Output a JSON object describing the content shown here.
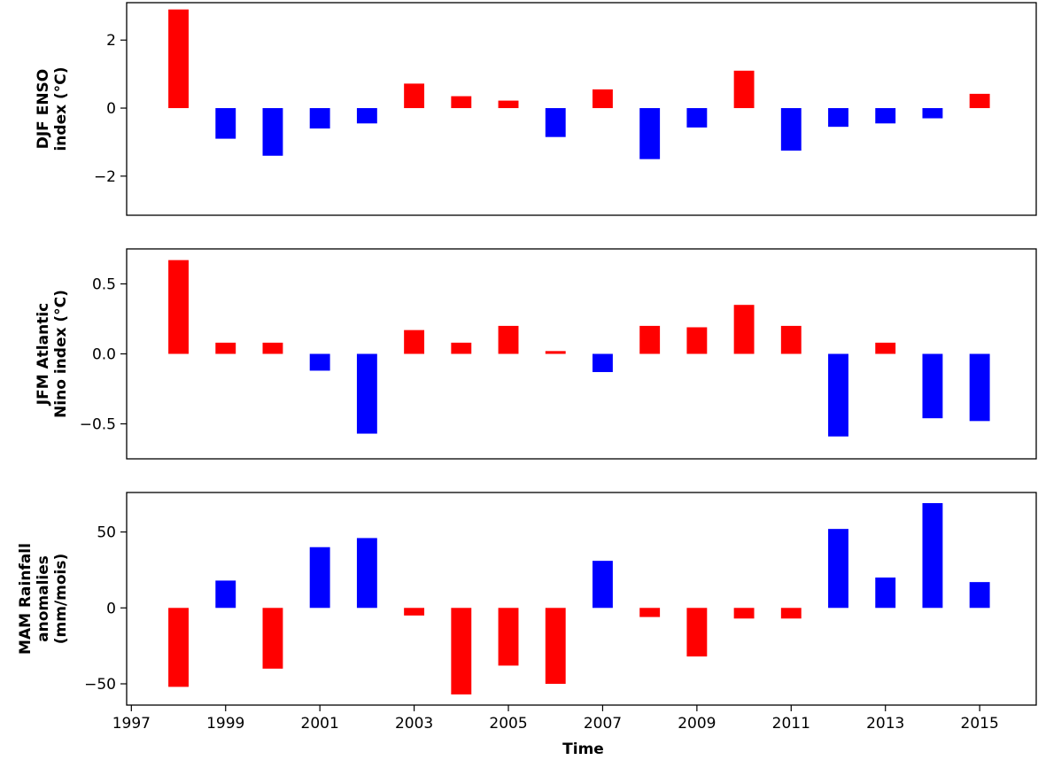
{
  "colors": {
    "positive": "#ff0000",
    "negative": "#0000ff",
    "axes": "#000000"
  },
  "chart_data": [
    {
      "type": "bar",
      "ylabel": [
        "DJF ENSO",
        "index (°C)"
      ],
      "x": [
        1998,
        1999,
        2000,
        2001,
        2002,
        2003,
        2004,
        2005,
        2006,
        2007,
        2008,
        2009,
        2010,
        2011,
        2012,
        2013,
        2014,
        2015
      ],
      "values": [
        2.9,
        -0.9,
        -1.4,
        -0.6,
        -0.45,
        0.72,
        0.35,
        0.22,
        -0.85,
        0.55,
        -1.5,
        -0.57,
        1.1,
        -1.25,
        -0.55,
        -0.45,
        -0.3,
        0.42
      ],
      "bar_colors": [
        "red",
        "blue",
        "blue",
        "blue",
        "blue",
        "red",
        "red",
        "red",
        "blue",
        "red",
        "blue",
        "blue",
        "red",
        "blue",
        "blue",
        "blue",
        "blue",
        "red"
      ],
      "ylim": [
        -3.15,
        3.1
      ],
      "yticks": [
        -2,
        0,
        2
      ],
      "ytick_labels": [
        "−2",
        "0",
        "2"
      ],
      "xlim": [
        1996.9,
        2016.2
      ],
      "grid": false
    },
    {
      "type": "bar",
      "ylabel": [
        "JFM Atlantic",
        "Nino index (°C)"
      ],
      "x": [
        1998,
        1999,
        2000,
        2001,
        2002,
        2003,
        2004,
        2005,
        2006,
        2007,
        2008,
        2009,
        2010,
        2011,
        2012,
        2013,
        2014,
        2015
      ],
      "values": [
        0.67,
        0.08,
        0.08,
        -0.12,
        -0.57,
        0.17,
        0.08,
        0.2,
        0.02,
        -0.13,
        0.2,
        0.19,
        0.35,
        0.2,
        -0.59,
        0.08,
        -0.46,
        -0.48
      ],
      "bar_colors": [
        "red",
        "red",
        "red",
        "blue",
        "blue",
        "red",
        "red",
        "red",
        "red",
        "blue",
        "red",
        "red",
        "red",
        "red",
        "blue",
        "red",
        "blue",
        "blue"
      ],
      "ylim": [
        -0.75,
        0.75
      ],
      "yticks": [
        -0.5,
        0.0,
        0.5
      ],
      "ytick_labels": [
        "−0.5",
        "0.0",
        "0.5"
      ],
      "xlim": [
        1996.9,
        2016.2
      ],
      "grid": false
    },
    {
      "type": "bar",
      "ylabel": [
        "MAM Rainfall",
        "anomalies",
        "(mm/mois)"
      ],
      "xlabel": "Time",
      "x": [
        1998,
        1999,
        2000,
        2001,
        2002,
        2003,
        2004,
        2005,
        2006,
        2007,
        2008,
        2009,
        2010,
        2011,
        2012,
        2013,
        2014,
        2015
      ],
      "values": [
        -52,
        18,
        -40,
        40,
        46,
        -5,
        -57,
        -38,
        -50,
        31,
        -6,
        -32,
        -7,
        -7,
        52,
        20,
        69,
        17
      ],
      "bar_colors": [
        "red",
        "blue",
        "red",
        "blue",
        "blue",
        "red",
        "red",
        "red",
        "red",
        "blue",
        "red",
        "red",
        "red",
        "red",
        "blue",
        "blue",
        "blue",
        "blue"
      ],
      "ylim": [
        -64,
        76
      ],
      "yticks": [
        -50,
        0,
        50
      ],
      "ytick_labels": [
        "−50",
        "0",
        "50"
      ],
      "xlim": [
        1996.9,
        2016.2
      ],
      "xticks": [
        1997,
        1999,
        2001,
        2003,
        2005,
        2007,
        2009,
        2011,
        2013,
        2015
      ],
      "xtick_labels": [
        "1997",
        "1999",
        "2001",
        "2003",
        "2005",
        "2007",
        "2009",
        "2011",
        "2013",
        "2015"
      ],
      "grid": false
    }
  ]
}
